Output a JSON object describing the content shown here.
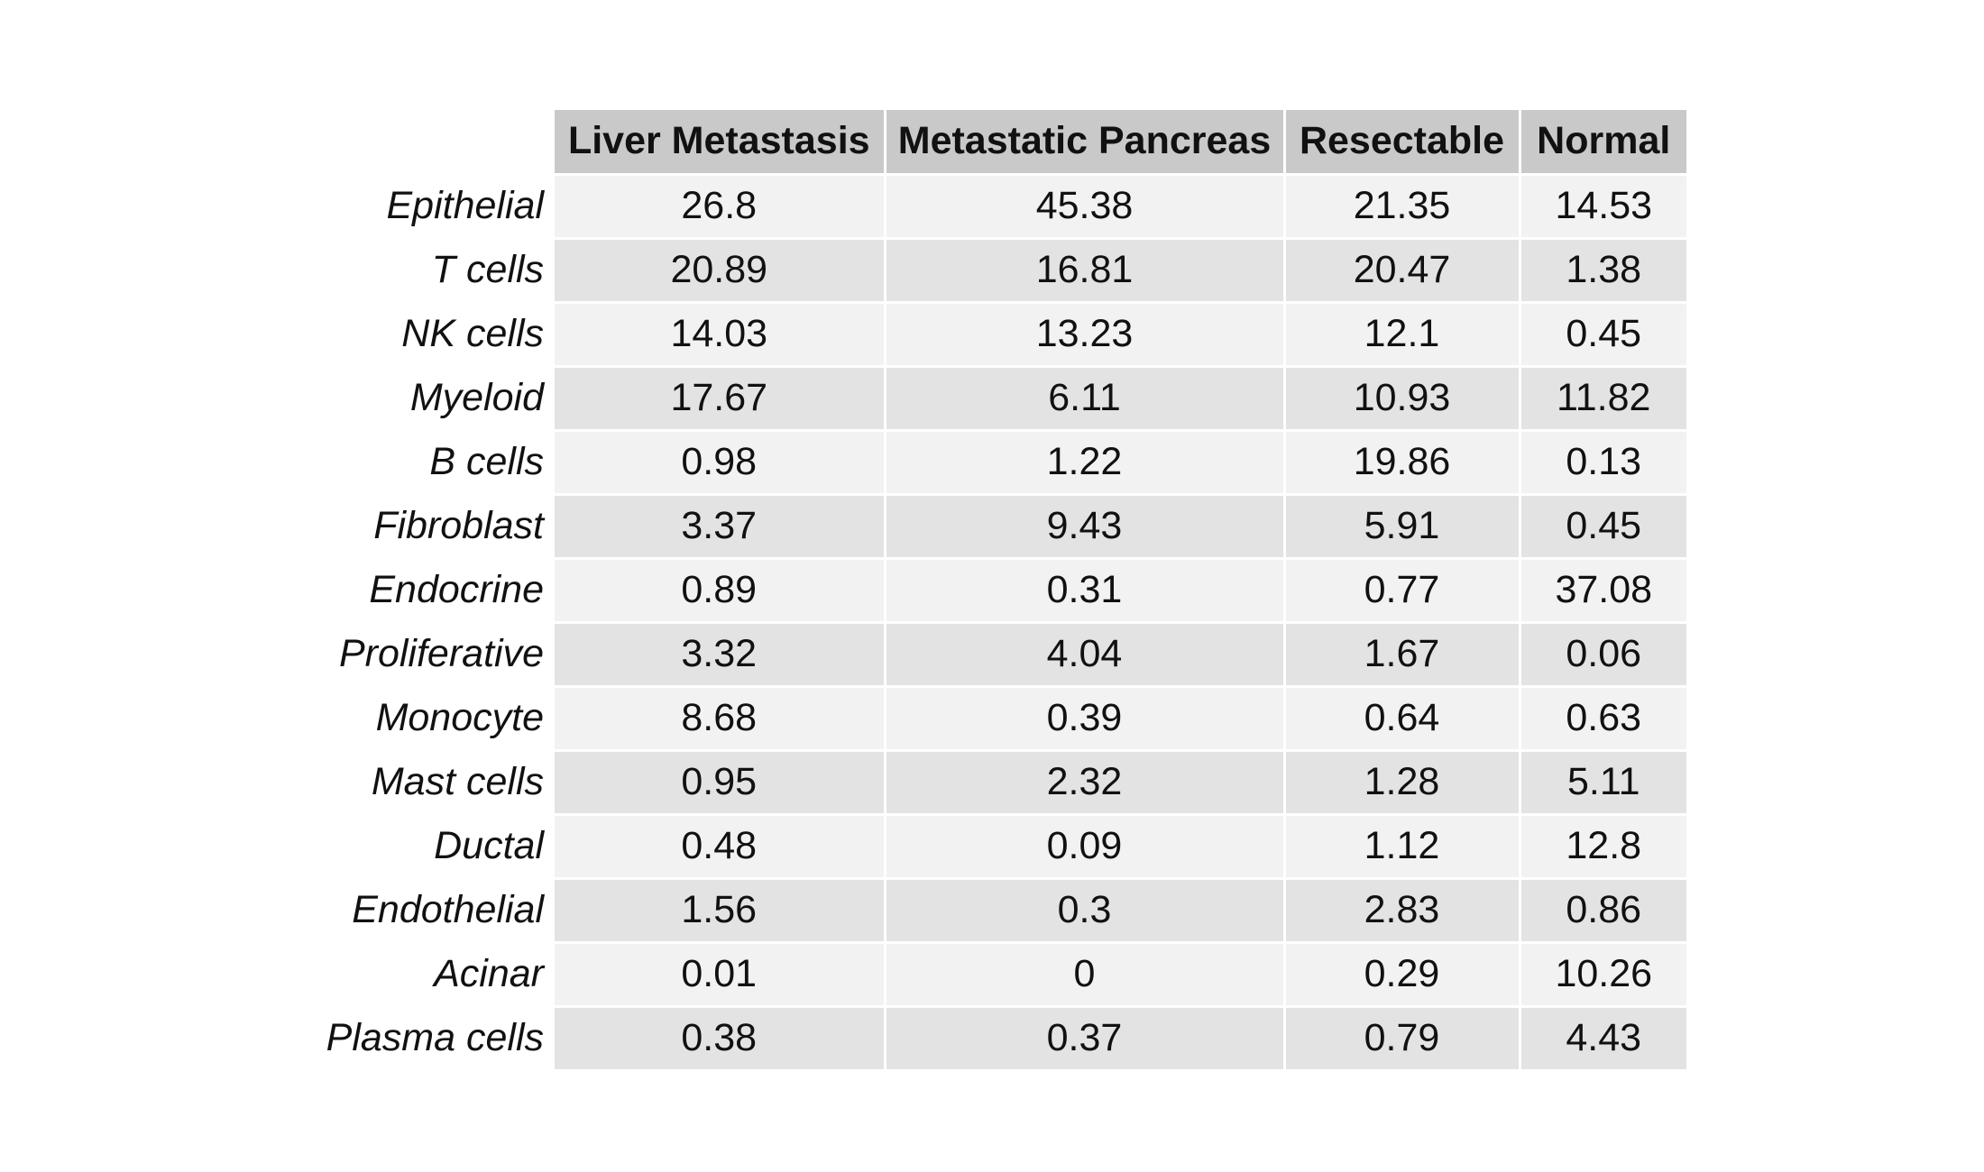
{
  "chart_data": {
    "type": "table",
    "columns": [
      "Liver Metastasis",
      "Metastatic Pancreas",
      "Resectable",
      "Normal"
    ],
    "rows": [
      {
        "label": "Epithelial",
        "values": [
          "26.8",
          "45.38",
          "21.35",
          "14.53"
        ]
      },
      {
        "label": "T cells",
        "values": [
          "20.89",
          "16.81",
          "20.47",
          "1.38"
        ]
      },
      {
        "label": "NK cells",
        "values": [
          "14.03",
          "13.23",
          "12.1",
          "0.45"
        ]
      },
      {
        "label": "Myeloid",
        "values": [
          "17.67",
          "6.11",
          "10.93",
          "11.82"
        ]
      },
      {
        "label": "B cells",
        "values": [
          "0.98",
          "1.22",
          "19.86",
          "0.13"
        ]
      },
      {
        "label": "Fibroblast",
        "values": [
          "3.37",
          "9.43",
          "5.91",
          "0.45"
        ]
      },
      {
        "label": "Endocrine",
        "values": [
          "0.89",
          "0.31",
          "0.77",
          "37.08"
        ]
      },
      {
        "label": "Proliferative",
        "values": [
          "3.32",
          "4.04",
          "1.67",
          "0.06"
        ]
      },
      {
        "label": "Monocyte",
        "values": [
          "8.68",
          "0.39",
          "0.64",
          "0.63"
        ]
      },
      {
        "label": "Mast cells",
        "values": [
          "0.95",
          "2.32",
          "1.28",
          "5.11"
        ]
      },
      {
        "label": "Ductal",
        "values": [
          "0.48",
          "0.09",
          "1.12",
          "12.8"
        ]
      },
      {
        "label": "Endothelial",
        "values": [
          "1.56",
          "0.3",
          "2.83",
          "0.86"
        ]
      },
      {
        "label": "Acinar",
        "values": [
          "0.01",
          "0",
          "0.29",
          "10.26"
        ]
      },
      {
        "label": "Plasma cells",
        "values": [
          "0.38",
          "0.37",
          "0.79",
          "4.43"
        ]
      }
    ],
    "colors": {
      "header_bg": "#c9c9c9",
      "row_odd_bg": "#f2f2f2",
      "row_even_bg": "#e3e3e3",
      "cell_border": "#ffffff"
    }
  }
}
